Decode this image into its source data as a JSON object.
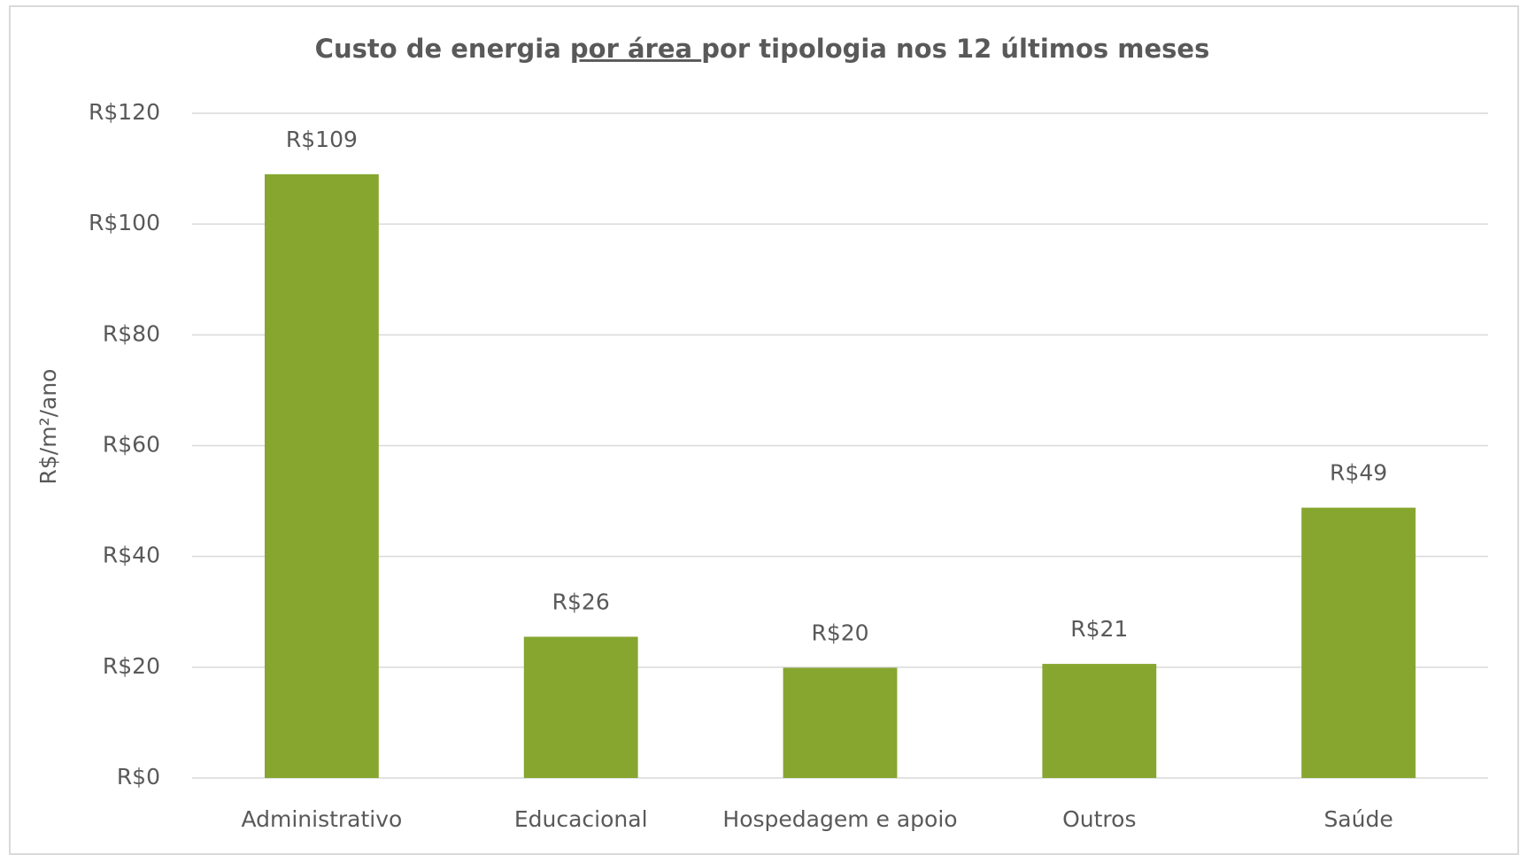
{
  "chart_data": {
    "type": "bar",
    "title": [
      "Custo de energia ",
      "por área ",
      "por tipologia nos 12 últimos meses"
    ],
    "y_label": "R$/m²/ano",
    "categories": [
      "Administrativo",
      "Educacional",
      "Hospedagem e apoio",
      "Outros",
      "Saúde"
    ],
    "values": [
      109,
      25.5,
      19.9,
      20.6,
      48.8
    ],
    "value_labels": [
      "R$109",
      "R$26",
      "R$20",
      "R$21",
      "R$49"
    ],
    "color": "#86a630",
    "ylim": [
      0,
      120
    ],
    "yticks": [
      {
        "value": 0,
        "label": "R$0"
      },
      {
        "value": 20,
        "label": "R$20"
      },
      {
        "value": 40,
        "label": "R$40"
      },
      {
        "value": 60,
        "label": "R$60"
      },
      {
        "value": 80,
        "label": "R$80"
      },
      {
        "value": 100,
        "label": "R$100"
      },
      {
        "value": 120,
        "label": "R$120"
      }
    ],
    "grid": true
  }
}
